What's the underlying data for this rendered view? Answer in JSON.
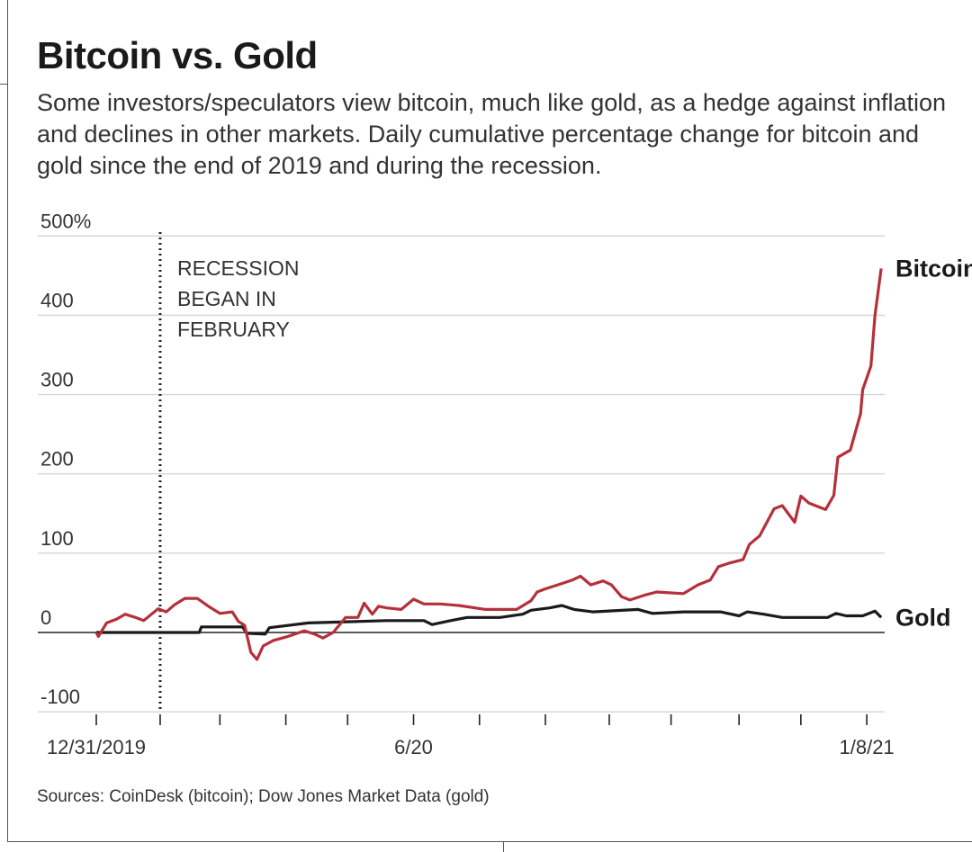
{
  "title": "Bitcoin vs. Gold",
  "subtitle": "Some investors/speculators view bitcoin, much like gold, as a hedge against inflation and declines in other markets. Daily cumulative percentage change for bitcoin and gold since the end of 2019 and during the recession.",
  "source": "Sources: CoinDesk (bitcoin); Dow Jones Market Data (gold)",
  "chart_data": {
    "type": "line",
    "title": "Bitcoin vs. Gold",
    "xlabel": "",
    "ylabel": "",
    "ylim": [
      -100,
      500
    ],
    "xlim": [
      "2019-12-31",
      "2021-01-15"
    ],
    "grid": true,
    "legend": "inline labels at line ends",
    "y_ticks": [
      {
        "value": 500,
        "label": "500%"
      },
      {
        "value": 400,
        "label": "400"
      },
      {
        "value": 300,
        "label": "300"
      },
      {
        "value": 200,
        "label": "200"
      },
      {
        "value": 100,
        "label": "100"
      },
      {
        "value": 0,
        "label": "0"
      },
      {
        "value": -100,
        "label": "-100"
      }
    ],
    "x_ticks": [
      {
        "date": "2019-12-31",
        "label": "12/31/2019"
      },
      {
        "date": "2020-01-31",
        "label": ""
      },
      {
        "date": "2020-02-29",
        "label": ""
      },
      {
        "date": "2020-04-01",
        "label": ""
      },
      {
        "date": "2020-05-01",
        "label": ""
      },
      {
        "date": "2020-06-02",
        "label": "6/20"
      },
      {
        "date": "2020-07-04",
        "label": ""
      },
      {
        "date": "2020-08-05",
        "label": ""
      },
      {
        "date": "2020-09-05",
        "label": ""
      },
      {
        "date": "2020-10-05",
        "label": ""
      },
      {
        "date": "2020-11-07",
        "label": ""
      },
      {
        "date": "2020-12-07",
        "label": ""
      },
      {
        "date": "2021-01-08",
        "label": "1/8/21"
      }
    ],
    "annotation": {
      "date": "2020-01-31",
      "lines": [
        "RECESSION",
        "BEGAN IN",
        "FEBRUARY"
      ]
    },
    "series": [
      {
        "name": "Bitcoin",
        "color": "#b5303a",
        "points": [
          [
            "2019-12-31",
            0
          ],
          [
            "2020-01-01",
            -5
          ],
          [
            "2020-01-05",
            12
          ],
          [
            "2020-01-10",
            17
          ],
          [
            "2020-01-14",
            23
          ],
          [
            "2020-01-19",
            19
          ],
          [
            "2020-01-23",
            15
          ],
          [
            "2020-01-30",
            30
          ],
          [
            "2020-02-03",
            26
          ],
          [
            "2020-02-07",
            35
          ],
          [
            "2020-02-12",
            43
          ],
          [
            "2020-02-18",
            43
          ],
          [
            "2020-02-24",
            32
          ],
          [
            "2020-02-29",
            24
          ],
          [
            "2020-03-06",
            26
          ],
          [
            "2020-03-09",
            14
          ],
          [
            "2020-03-12",
            9
          ],
          [
            "2020-03-15",
            -25
          ],
          [
            "2020-03-18",
            -34
          ],
          [
            "2020-03-21",
            -17
          ],
          [
            "2020-03-26",
            -10
          ],
          [
            "2020-04-02",
            -5
          ],
          [
            "2020-04-10",
            2
          ],
          [
            "2020-04-15",
            -2
          ],
          [
            "2020-04-19",
            -7
          ],
          [
            "2020-04-24",
            0
          ],
          [
            "2020-04-30",
            19
          ],
          [
            "2020-05-06",
            19
          ],
          [
            "2020-05-09",
            37
          ],
          [
            "2020-05-13",
            23
          ],
          [
            "2020-05-16",
            33
          ],
          [
            "2020-05-20",
            31
          ],
          [
            "2020-05-27",
            29
          ],
          [
            "2020-06-02",
            42
          ],
          [
            "2020-06-07",
            36
          ],
          [
            "2020-06-15",
            36
          ],
          [
            "2020-06-24",
            34
          ],
          [
            "2020-07-07",
            29
          ],
          [
            "2020-07-22",
            29
          ],
          [
            "2020-07-29",
            40
          ],
          [
            "2020-08-01",
            51
          ],
          [
            "2020-08-05",
            55
          ],
          [
            "2020-08-11",
            60
          ],
          [
            "2020-08-18",
            66
          ],
          [
            "2020-08-22",
            71
          ],
          [
            "2020-08-27",
            60
          ],
          [
            "2020-09-02",
            65
          ],
          [
            "2020-09-06",
            60
          ],
          [
            "2020-09-11",
            45
          ],
          [
            "2020-09-15",
            41
          ],
          [
            "2020-09-22",
            47
          ],
          [
            "2020-09-28",
            51
          ],
          [
            "2020-10-11",
            49
          ],
          [
            "2020-10-18",
            60
          ],
          [
            "2020-10-24",
            66
          ],
          [
            "2020-10-28",
            83
          ],
          [
            "2020-11-03",
            88
          ],
          [
            "2020-11-09",
            92
          ],
          [
            "2020-11-12",
            111
          ],
          [
            "2020-11-17",
            122
          ],
          [
            "2020-11-24",
            156
          ],
          [
            "2020-11-28",
            160
          ],
          [
            "2020-12-04",
            139
          ],
          [
            "2020-12-07",
            172
          ],
          [
            "2020-12-11",
            163
          ],
          [
            "2020-12-19",
            155
          ],
          [
            "2020-12-23",
            173
          ],
          [
            "2020-12-25",
            221
          ],
          [
            "2020-12-31",
            230
          ],
          [
            "2021-01-05",
            276
          ],
          [
            "2021-01-06",
            306
          ],
          [
            "2021-01-10",
            336
          ],
          [
            "2021-01-12",
            400
          ],
          [
            "2021-01-15",
            459
          ]
        ]
      },
      {
        "name": "Gold",
        "color": "#1a1a1a",
        "points": [
          [
            "2019-12-31",
            0
          ],
          [
            "2020-02-19",
            0
          ],
          [
            "2020-02-20",
            7
          ],
          [
            "2020-03-11",
            7
          ],
          [
            "2020-03-13",
            -1
          ],
          [
            "2020-03-22",
            -2
          ],
          [
            "2020-03-24",
            6
          ],
          [
            "2020-04-12",
            12
          ],
          [
            "2020-05-20",
            15
          ],
          [
            "2020-06-07",
            15
          ],
          [
            "2020-06-11",
            10
          ],
          [
            "2020-06-20",
            15
          ],
          [
            "2020-06-28",
            19
          ],
          [
            "2020-07-14",
            19
          ],
          [
            "2020-07-25",
            23
          ],
          [
            "2020-07-29",
            28
          ],
          [
            "2020-08-07",
            31
          ],
          [
            "2020-08-13",
            34
          ],
          [
            "2020-08-19",
            29
          ],
          [
            "2020-08-28",
            26
          ],
          [
            "2020-09-19",
            29
          ],
          [
            "2020-09-26",
            24
          ],
          [
            "2020-10-11",
            26
          ],
          [
            "2020-10-29",
            26
          ],
          [
            "2020-11-07",
            21
          ],
          [
            "2020-11-11",
            26
          ],
          [
            "2020-11-19",
            23
          ],
          [
            "2020-11-28",
            19
          ],
          [
            "2020-12-20",
            19
          ],
          [
            "2020-12-24",
            24
          ],
          [
            "2020-12-29",
            21
          ],
          [
            "2021-01-06",
            21
          ],
          [
            "2021-01-12",
            27
          ],
          [
            "2021-01-15",
            19
          ]
        ]
      }
    ]
  }
}
